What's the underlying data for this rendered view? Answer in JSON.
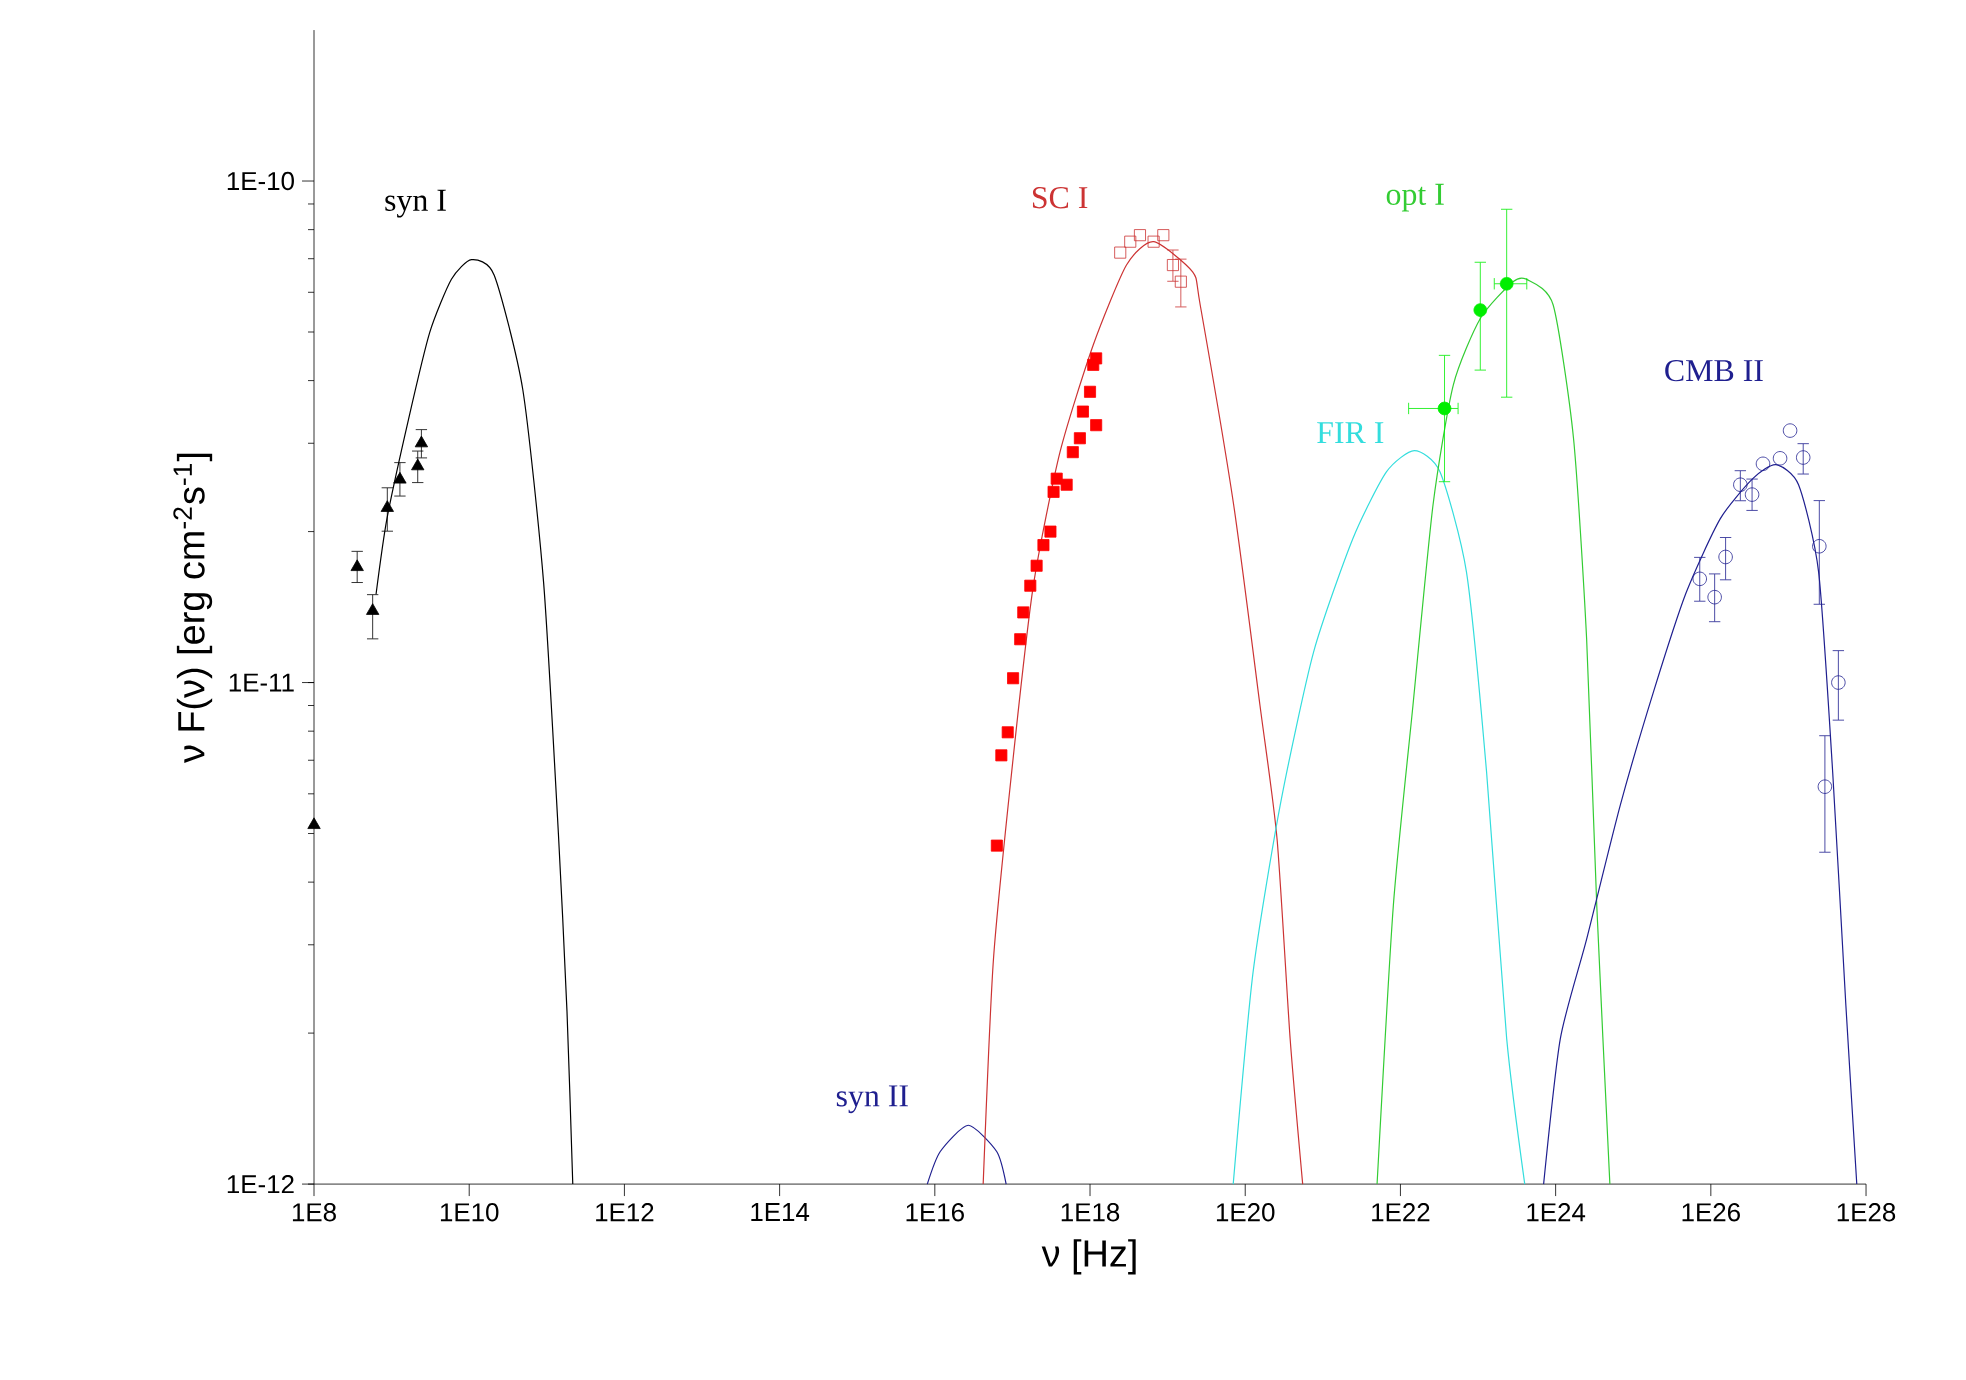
{
  "chart_data": {
    "type": "line",
    "log": "xy",
    "xlabel": "ν [Hz]",
    "ylabel": "ν F(ν) [erg cm$^{-2}$s$^{-1}$]",
    "xlim": [
      100000000.0,
      1e+28
    ],
    "ylim": [
      1e-12,
      2e-10
    ],
    "xticks": [
      {
        "value": 100000000.0,
        "label": "1E8"
      },
      {
        "value": 10000000000.0,
        "label": "1E10"
      },
      {
        "value": 1000000000000.0,
        "label": "1E12"
      },
      {
        "value": 100000000000000.0,
        "label": "1E14"
      },
      {
        "value": 1e+16,
        "label": "1E16"
      },
      {
        "value": 1e+18,
        "label": "1E18"
      },
      {
        "value": 1e+20,
        "label": "1E20"
      },
      {
        "value": 1e+22,
        "label": "1E22"
      },
      {
        "value": 1e+24,
        "label": "1E24"
      },
      {
        "value": 1e+26,
        "label": "1E26"
      },
      {
        "value": 1e+28,
        "label": "1E28"
      }
    ],
    "yticks": [
      {
        "value": 1e-12,
        "label": "1E-12"
      },
      {
        "value": 1e-11,
        "label": "1E-11"
      },
      {
        "value": 1e-10,
        "label": "1E-10"
      }
    ],
    "series": [
      {
        "name": "syn I",
        "line_style": "solid",
        "color": "#000000",
        "x": [
          630000000.0,
          870000000.0,
          1660000000.0,
          3100000000.0,
          5900000000.0,
          10700000000.0,
          21000000000.0,
          49000000000.0,
          91000000000.0,
          141000000000.0,
          182000000000.0,
          216000000000.0
        ],
        "values": [
          1.5e-11,
          2.12e-11,
          3.36e-11,
          4.99e-11,
          6.37e-11,
          6.97e-11,
          6.49e-11,
          3.84e-11,
          1.58e-11,
          5e-12,
          2.21e-12,
          1e-12
        ]
      },
      {
        "type": "scatter",
        "marker": "triangle",
        "color": "#000000",
        "x": [
          100000000.0,
          360000000.0,
          570000000.0,
          880000000.0,
          1280000000.0,
          2170000000.0,
          2420000000.0
        ],
        "values": [
          5.2e-12,
          1.7e-11,
          1.39e-11,
          2.23e-11,
          2.54e-11,
          2.7e-11,
          3e-11
        ],
        "errors": [
          null,
          [
            1.58e-11,
            1.83e-11
          ],
          [
            1.22e-11,
            1.5e-11
          ],
          [
            2e-11,
            2.45e-11
          ],
          [
            2.35e-11,
            2.75e-11
          ],
          [
            2.5e-11,
            2.9e-11
          ],
          [
            2.8e-11,
            3.2e-11
          ]
        ]
      },
      {
        "name": "syn II",
        "line_style": "solid",
        "color": "#1f1f8f",
        "x": [
          8000000000000000.0,
          1.17e+16,
          2.7e+16,
          6.3e+16,
          8.3e+16
        ],
        "values": [
          1e-12,
          1.16e-12,
          1.31e-12,
          1.16e-12,
          1e-12
        ]
      },
      {
        "name": "SC I",
        "line_style": "solid",
        "color": "#cc3333",
        "x": [
          4.2e+16,
          5.7e+16,
          1.02e+17,
          1.86e+17,
          4.1e+17,
          1.1e+18,
          2.95e+18,
          6.6e+18,
          2.1e+19,
          2.63e+19,
          7.1e+19,
          1.55e+20,
          2.57e+20,
          3.8e+20,
          5.5e+20
        ],
        "values": [
          1e-12,
          2.81e-12,
          7.05e-12,
          1.56e-11,
          2.88e-11,
          4.71e-11,
          6.8e-11,
          7.57e-11,
          6.59e-11,
          5.66e-11,
          2.26e-11,
          9e-12,
          4.88e-12,
          1.94e-12,
          1e-12
        ]
      },
      {
        "type": "scatter",
        "marker": "square",
        "color": "#ff0000",
        "x": [
          6.3e+16,
          7.2e+16,
          8.7e+16,
          1.02e+17,
          1.26e+17,
          1.38e+17,
          1.7e+17,
          2.05e+17,
          2.51e+17,
          3.09e+17,
          3.39e+17,
          3.72e+17,
          5e+17,
          6e+17,
          7.4e+17,
          8.1e+17,
          1e+18,
          1.1e+18,
          1.2e+18,
          1.2e+18
        ],
        "values": [
          4.73e-12,
          7.16e-12,
          7.96e-12,
          1.02e-11,
          1.22e-11,
          1.38e-11,
          1.56e-11,
          1.71e-11,
          1.88e-11,
          2e-11,
          2.4e-11,
          2.55e-11,
          2.48e-11,
          2.88e-11,
          3.07e-11,
          3.47e-11,
          3.8e-11,
          4.3e-11,
          4.43e-11,
          3.26e-11
        ]
      },
      {
        "type": "scatter",
        "marker": "square-open",
        "color": "#cc3333",
        "x": [
          2.45e+18,
          3.3e+18,
          4.4e+18,
          6.6e+18,
          8.8e+18,
          1.17e+19,
          1.48e+19
        ],
        "values": [
          7.2e-11,
          7.57e-11,
          7.8e-11,
          7.57e-11,
          7.8e-11,
          6.8e-11,
          6.3e-11
        ],
        "errors": [
          null,
          null,
          null,
          null,
          null,
          [
            6.3e-11,
            7.3e-11
          ],
          [
            5.6e-11,
            7e-11
          ]
        ]
      },
      {
        "name": "FIR I",
        "line_style": "solid",
        "color": "#33dddd",
        "x": [
          7e+19,
          1.26e+20,
          2.82e+20,
          7.6e+20,
          2.45e+21,
          6.6e+21,
          1.51e+22,
          3.24e+22,
          7.1e+22,
          1.29e+23,
          2.34e+23,
          4e+23
        ],
        "values": [
          1e-12,
          2.64e-12,
          5.69e-12,
          1.15e-11,
          1.94e-11,
          2.63e-11,
          2.9e-11,
          2.63e-11,
          1.66e-11,
          6.62e-12,
          1.95e-12,
          1e-12
        ]
      },
      {
        "name": "opt I",
        "line_style": "solid",
        "color": "#33cc33",
        "x": [
          5e+21,
          8.1e+21,
          1.45e+22,
          2.63e+22,
          4.8e+22,
          1.07e+23,
          2.82e+23,
          4.3e+23,
          9.3e+23,
          1.7e+24,
          2.51e+24,
          3.39e+24,
          5e+24
        ],
        "values": [
          1e-12,
          3.59e-12,
          9e-12,
          2.26e-11,
          3.92e-11,
          5.32e-11,
          6.3e-11,
          6.36e-11,
          5.66e-11,
          3.07e-11,
          1.22e-11,
          3.59e-12,
          1e-12
        ]
      },
      {
        "type": "scatter",
        "marker": "circle",
        "color": "#00ee00",
        "x": [
          3.7e+22,
          1.07e+23,
          2.34e+23
        ],
        "values": [
          3.52e-11,
          5.53e-11,
          6.24e-11
        ],
        "errors": [
          [
            2.51e-11,
            4.5e-11
          ],
          [
            4.19e-11,
            6.9e-11
          ],
          [
            3.7e-11,
            8.8e-11
          ]
        ],
        "xerrors": [
          [
            1.26e+22,
            5.6e+22
          ],
          null,
          [
            1.6e+23,
            4.3e+23
          ]
        ]
      },
      {
        "name": "CMB II",
        "line_style": "solid",
        "color": "#1f1f8f",
        "x": [
          7e+23,
          1.15e+24,
          2.51e+24,
          6.8e+24,
          1.82e+25,
          4.8e+25,
          1.32e+26,
          3.47e+26,
          6.9e+26,
          1.35e+27,
          2.45e+27,
          3.72e+27,
          5.5e+27,
          7.6e+27
        ],
        "values": [
          1e-12,
          1.95e-12,
          3.08e-12,
          5.69e-12,
          9.57e-12,
          1.51e-11,
          2.12e-11,
          2.55e-11,
          2.72e-11,
          2.48e-11,
          1.66e-11,
          6.62e-12,
          2.27e-12,
          1e-12
        ]
      },
      {
        "type": "scatter",
        "marker": "circle-open",
        "color": "#1f1f8f",
        "x": [
          7.2e+25,
          1.12e+26,
          1.55e+26,
          2.4e+26,
          3.4e+26,
          4.7e+26,
          7.8e+26,
          1.05e+27,
          1.55e+27,
          2.5e+27,
          4.4e+27,
          2.95e+27
        ],
        "values": [
          1.61e-11,
          1.48e-11,
          1.78e-11,
          2.48e-11,
          2.37e-11,
          2.73e-11,
          2.8e-11,
          3.18e-11,
          2.81e-11,
          1.87e-11,
          1e-11,
          6.2e-12
        ],
        "errors": [
          [
            1.45e-11,
            1.78e-11
          ],
          [
            1.32e-11,
            1.65e-11
          ],
          [
            1.6e-11,
            1.95e-11
          ],
          [
            2.3e-11,
            2.65e-11
          ],
          [
            2.2e-11,
            2.55e-11
          ],
          null,
          null,
          null,
          [
            2.6e-11,
            3e-11
          ],
          [
            1.43e-11,
            2.31e-11
          ],
          [
            8.4e-12,
            1.16e-11
          ],
          [
            4.58e-12,
            7.85e-12
          ]
        ]
      }
    ]
  }
}
